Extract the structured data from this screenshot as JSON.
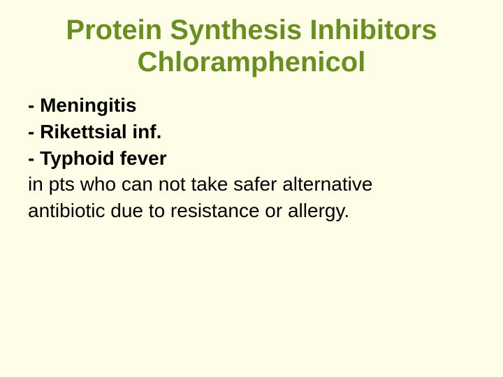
{
  "slide": {
    "background_color": "#fdfde8",
    "title": {
      "line1": "Protein Synthesis Inhibitors",
      "line2": "Chloramphenicol",
      "color": "#6b8e23",
      "fontsize": 40,
      "fontweight": "bold",
      "align": "center"
    },
    "body": {
      "color": "#000000",
      "fontsize": 28,
      "lines": [
        {
          "text": "- Meningitis",
          "bold": true
        },
        {
          "text": "- Rikettsial inf.",
          "bold": true
        },
        {
          "text": "- Typhoid fever",
          "bold": true
        },
        {
          "text": "in pts who can not take safer alternative",
          "bold": false
        },
        {
          "text": "antibiotic due to resistance or allergy.",
          "bold": false
        }
      ]
    }
  }
}
